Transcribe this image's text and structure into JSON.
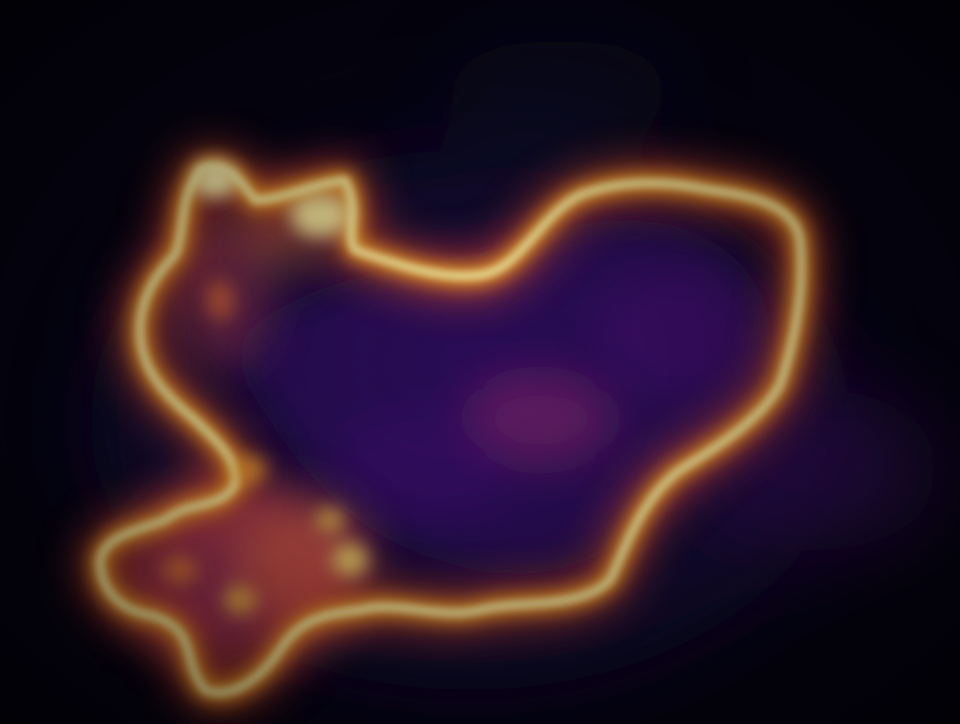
{
  "image": {
    "description_free": true,
    "colormap": [
      "#000004",
      "#1b0c41",
      "#4a0c6b",
      "#781c6d",
      "#a52c60",
      "#cf4446",
      "#ed6925",
      "#fb9b06",
      "#f7d13d",
      "#fcffa4"
    ],
    "background_color": "#05030f",
    "heat_regions": [
      {
        "kind": "edge-glow",
        "level": 1.0
      },
      {
        "kind": "interior-haze",
        "level": 0.22
      }
    ]
  }
}
